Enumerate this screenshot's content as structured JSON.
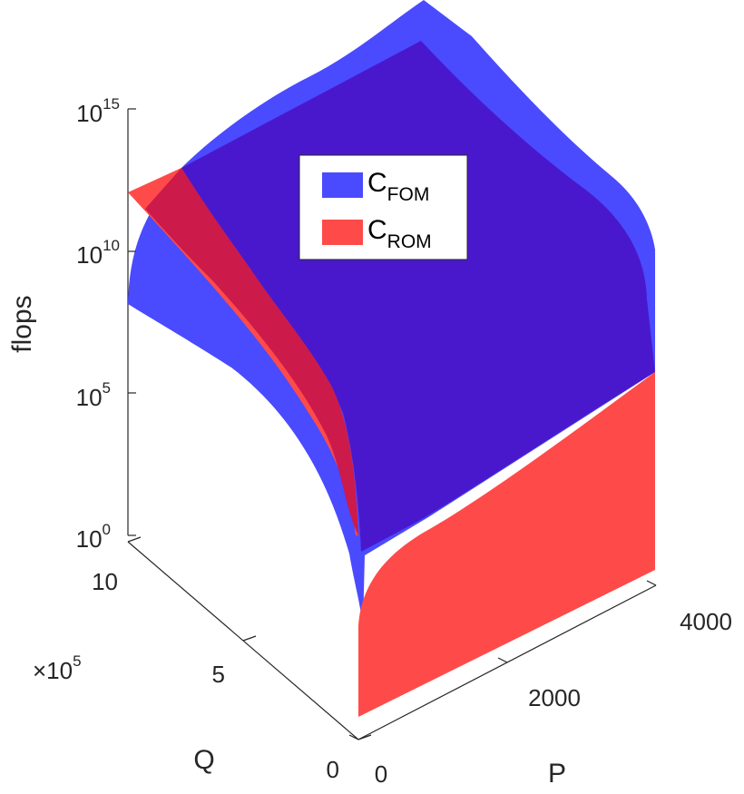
{
  "chart_data": {
    "type": "surface3d",
    "zlabel": "flops",
    "xlabel": "P",
    "ylabel": "Q",
    "z_scale": "log",
    "z_ticks": [
      {
        "base": "10",
        "exp": "0",
        "value": 1
      },
      {
        "base": "10",
        "exp": "5",
        "value": 100000
      },
      {
        "base": "10",
        "exp": "10",
        "value": 10000000000
      },
      {
        "base": "10",
        "exp": "15",
        "value": 1000000000000000
      }
    ],
    "x_ticks": [
      {
        "label": "0",
        "value": 0
      },
      {
        "label": "2000",
        "value": 2000
      },
      {
        "label": "4000",
        "value": 4000
      }
    ],
    "y_ticks": [
      {
        "label": "0",
        "value": 0
      },
      {
        "label": "5",
        "value": 5
      },
      {
        "label": "10",
        "value": 10
      }
    ],
    "y_multiplier": {
      "base": "×10",
      "exp": "5"
    },
    "xlim": [
      0,
      4000
    ],
    "ylim": [
      0,
      1000000
    ],
    "zlim": [
      1,
      1000000000000000
    ],
    "grid": false,
    "legend_placement": "top-center",
    "series": [
      {
        "name": "C",
        "subscript": "FOM",
        "color": "#4a4aff"
      },
      {
        "name": "C",
        "subscript": "ROM",
        "color": "#ff4a4a"
      }
    ]
  },
  "colors": {
    "fom": "#4a4aff",
    "fom_dark": "#4a18cc",
    "rom": "#ff4a4a",
    "overlap": "#cc1a4a",
    "axis": "#262626"
  }
}
